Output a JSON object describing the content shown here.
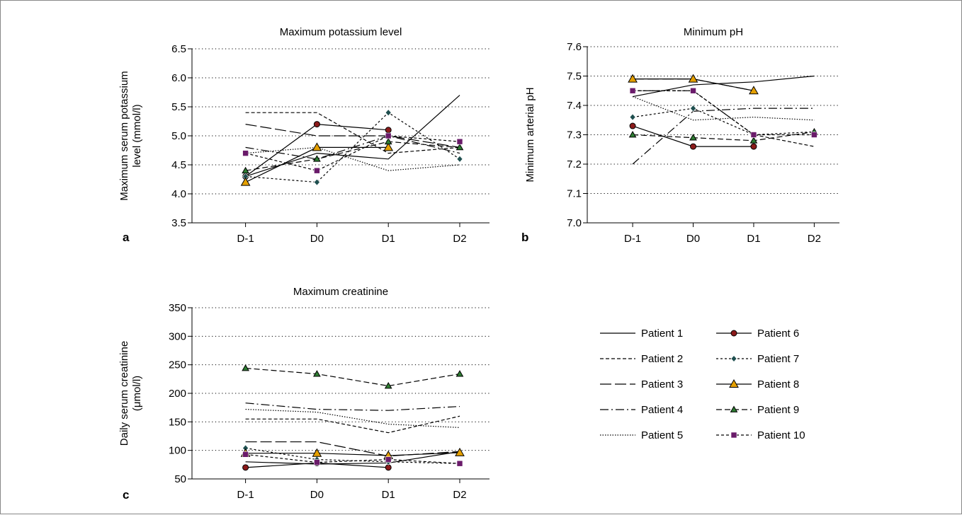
{
  "chart_data": [
    {
      "panel": "a",
      "type": "line",
      "title": "Maximum potassium level",
      "ylabel": [
        "Maximum serum potassium",
        "level (mmol/l)"
      ],
      "categories": [
        "D-1",
        "D0",
        "D1",
        "D2"
      ],
      "ylim": [
        3.5,
        6.5
      ],
      "yticks": [
        "3.5",
        "4.0",
        "4.5",
        "5.0",
        "5.5",
        "6.0",
        "6.5"
      ],
      "grid": true,
      "series": [
        {
          "name": "Patient 1",
          "values": [
            4.3,
            4.7,
            4.6,
            5.7
          ]
        },
        {
          "name": "Patient 2",
          "values": [
            5.4,
            5.4,
            4.7,
            4.8
          ]
        },
        {
          "name": "Patient 3",
          "values": [
            5.2,
            5.0,
            5.0,
            4.8
          ]
        },
        {
          "name": "Patient 4",
          "values": [
            4.8,
            4.6,
            5.0,
            4.7
          ]
        },
        {
          "name": "Patient 5",
          "values": [
            4.7,
            4.8,
            4.4,
            4.5
          ]
        },
        {
          "name": "Patient 6",
          "values": [
            4.3,
            5.2,
            5.1,
            null
          ]
        },
        {
          "name": "Patient 7",
          "values": [
            4.3,
            4.2,
            5.4,
            4.6
          ]
        },
        {
          "name": "Patient 8",
          "values": [
            4.2,
            4.8,
            4.8,
            null
          ]
        },
        {
          "name": "Patient 9",
          "values": [
            4.4,
            4.6,
            4.9,
            4.8
          ]
        },
        {
          "name": "Patient 10",
          "values": [
            4.7,
            4.4,
            5.0,
            4.9
          ]
        }
      ]
    },
    {
      "panel": "b",
      "type": "line",
      "title": "Minimum pH",
      "ylabel": [
        "Minimum arterial pH"
      ],
      "categories": [
        "D-1",
        "D0",
        "D1",
        "D2"
      ],
      "ylim": [
        7.0,
        7.6
      ],
      "yticks": [
        "7.0",
        "7.1",
        "7.2",
        "7.3",
        "7.4",
        "7.5",
        "7.6"
      ],
      "grid": true,
      "series": [
        {
          "name": "Patient 1",
          "values": [
            7.43,
            7.47,
            7.48,
            7.5
          ]
        },
        {
          "name": "Patient 2",
          "values": [
            7.45,
            7.45,
            7.3,
            7.26
          ]
        },
        {
          "name": "Patient 3",
          "values": [
            7.49,
            7.49,
            7.45,
            null
          ]
        },
        {
          "name": "Patient 4",
          "values": [
            7.2,
            7.38,
            7.39,
            7.39
          ]
        },
        {
          "name": "Patient 5",
          "values": [
            7.43,
            7.35,
            7.36,
            7.35
          ]
        },
        {
          "name": "Patient 6",
          "values": [
            7.33,
            7.26,
            7.26,
            null
          ]
        },
        {
          "name": "Patient 7",
          "values": [
            7.36,
            7.39,
            7.3,
            7.31
          ]
        },
        {
          "name": "Patient 8",
          "values": [
            7.49,
            7.49,
            7.45,
            null
          ]
        },
        {
          "name": "Patient 9",
          "values": [
            7.3,
            7.29,
            7.28,
            7.31
          ]
        },
        {
          "name": "Patient 10",
          "values": [
            7.45,
            7.45,
            7.3,
            7.3
          ]
        }
      ]
    },
    {
      "panel": "c",
      "type": "line",
      "title": "Maximum creatinine",
      "ylabel": [
        "Daily serum creatinine",
        "(μmol/l)"
      ],
      "categories": [
        "D-1",
        "D0",
        "D1",
        "D2"
      ],
      "ylim": [
        50,
        350
      ],
      "yticks": [
        "50",
        "100",
        "150",
        "200",
        "250",
        "300",
        "350"
      ],
      "grid": true,
      "series": [
        {
          "name": "Patient 1",
          "values": [
            80,
            76,
            78,
            98
          ]
        },
        {
          "name": "Patient 2",
          "values": [
            155,
            155,
            131,
            160
          ]
        },
        {
          "name": "Patient 3",
          "values": [
            115,
            115,
            90,
            98
          ]
        },
        {
          "name": "Patient 4",
          "values": [
            183,
            172,
            170,
            177
          ]
        },
        {
          "name": "Patient 5",
          "values": [
            172,
            167,
            146,
            140
          ]
        },
        {
          "name": "Patient 6",
          "values": [
            70,
            78,
            70,
            null
          ]
        },
        {
          "name": "Patient 7",
          "values": [
            104,
            84,
            80,
            77
          ]
        },
        {
          "name": "Patient 8",
          "values": [
            95,
            95,
            91,
            96
          ]
        },
        {
          "name": "Patient 9",
          "values": [
            244,
            234,
            213,
            234
          ]
        },
        {
          "name": "Patient 10",
          "values": [
            93,
            79,
            84,
            77
          ]
        }
      ]
    }
  ],
  "legend": [
    {
      "name": "Patient 1",
      "dash": "",
      "marker": "none",
      "fill": "none"
    },
    {
      "name": "Patient 2",
      "dash": "5,3",
      "marker": "none",
      "fill": "none"
    },
    {
      "name": "Patient 3",
      "dash": "16,5",
      "marker": "none",
      "fill": "none"
    },
    {
      "name": "Patient 4",
      "dash": "12,4,2,4",
      "marker": "none",
      "fill": "none"
    },
    {
      "name": "Patient 5",
      "dash": "1.5,2",
      "marker": "none",
      "fill": "none"
    },
    {
      "name": "Patient 6",
      "dash": "",
      "marker": "circle",
      "fill": "#8b1a1a"
    },
    {
      "name": "Patient 7",
      "dash": "3,3",
      "marker": "diamond",
      "fill": "#1f4f4f"
    },
    {
      "name": "Patient 8",
      "dash": "",
      "marker": "triangle",
      "fill": "#e5a000"
    },
    {
      "name": "Patient 9",
      "dash": "8,4",
      "marker": "triangle",
      "fill": "#2e7d32"
    },
    {
      "name": "Patient 10",
      "dash": "4,3",
      "marker": "square",
      "fill": "#6a1b6a"
    }
  ]
}
